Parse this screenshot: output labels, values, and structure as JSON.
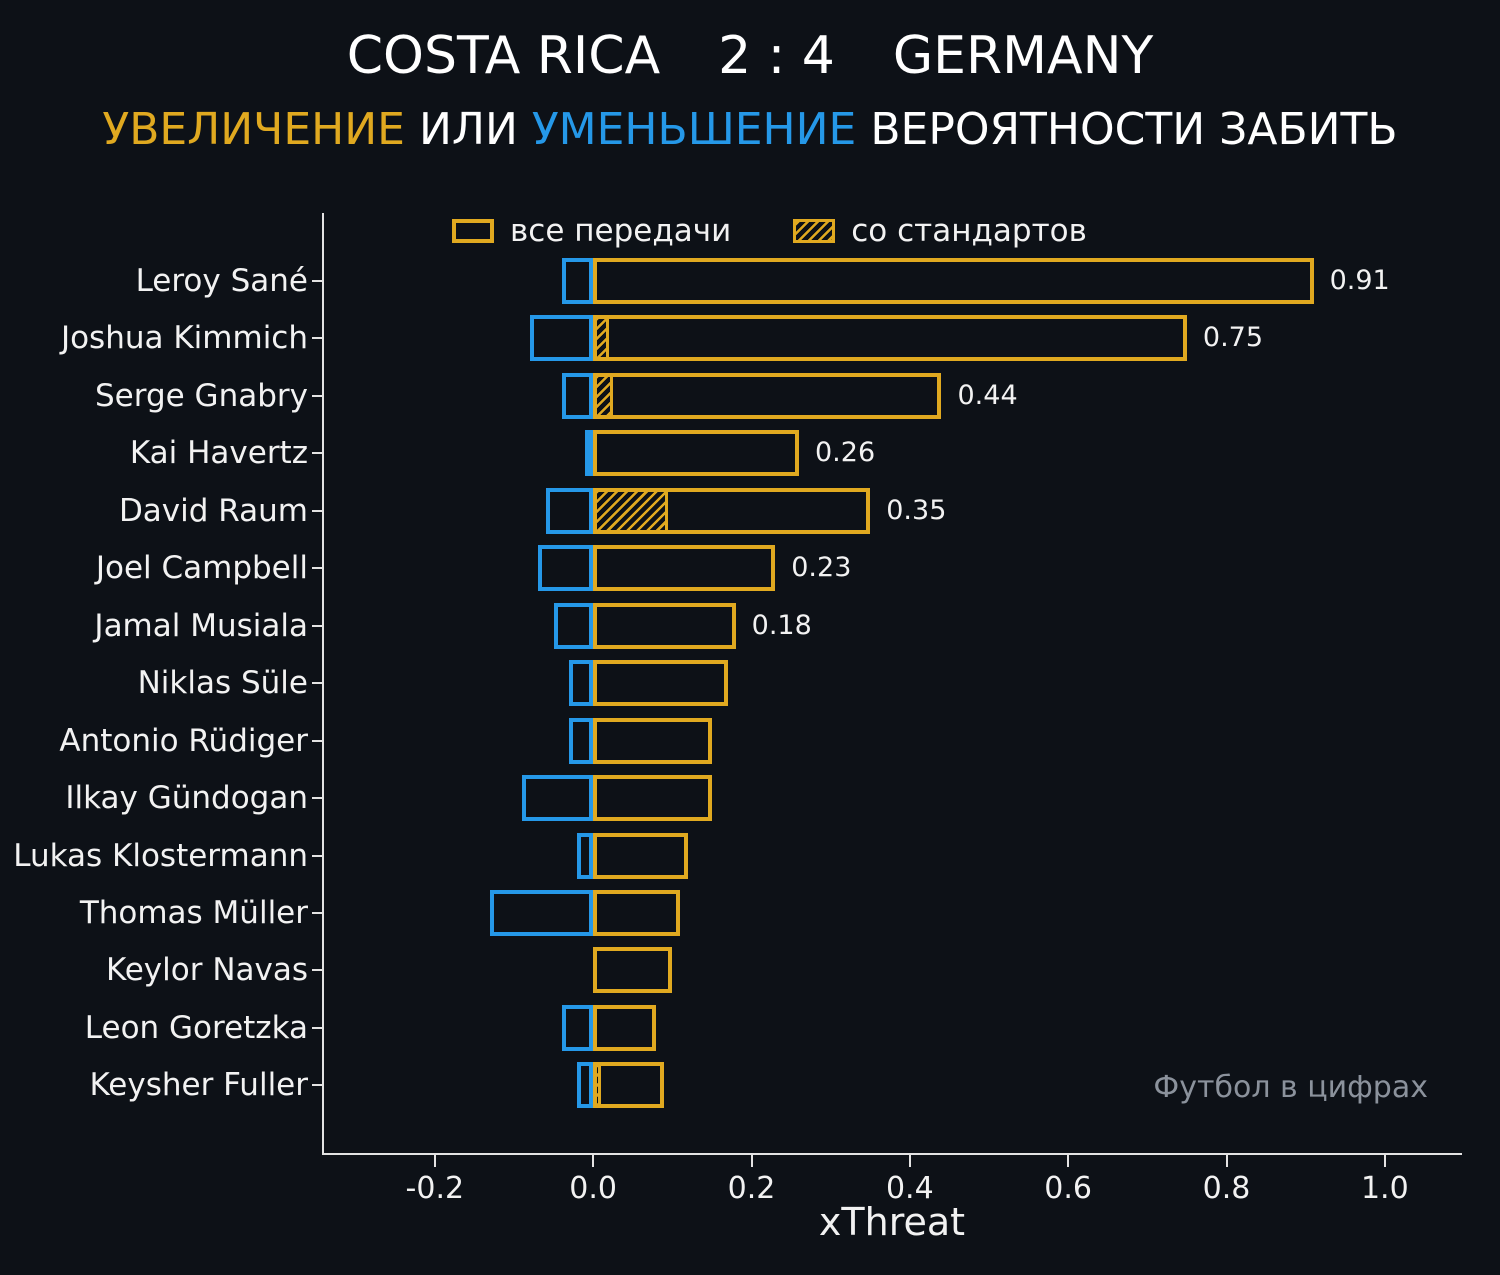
{
  "header": {
    "home": "COSTA RICA",
    "score": "2 : 4",
    "away": "GERMANY",
    "subtitle_increase": "УВЕЛИЧЕНИЕ",
    "subtitle_mid": " ИЛИ ",
    "subtitle_decrease": "УМЕНЬШЕНИЕ",
    "subtitle_rest": " ВЕРОЯТНОСТИ ЗАБИТЬ"
  },
  "legend": {
    "all_passes": "все передачи",
    "set_pieces": "со стандартов"
  },
  "watermark": "Футбол в цифрах",
  "colors": {
    "background": "#0d1117",
    "increase": "#e0a920",
    "decrease": "#2598e8"
  },
  "chart_data": {
    "type": "bar",
    "orientation": "horizontal",
    "title": "COSTA RICA 2 : 4 GERMANY",
    "subtitle": "УВЕЛИЧЕНИЕ ИЛИ УМЕНЬШЕНИЕ ВЕРОЯТНОСТИ ЗАБИТЬ",
    "xlabel": "xThreat",
    "xlim": [
      -0.34,
      1.1
    ],
    "x_ticks": [
      -0.2,
      0.0,
      0.2,
      0.4,
      0.6,
      0.8,
      1.0
    ],
    "x_tick_labels": [
      "-0.2",
      "0.0",
      "0.2",
      "0.4",
      "0.6",
      "0.8",
      "1.0"
    ],
    "legend_position": "top",
    "grid": false,
    "players": [
      {
        "name": "Leroy Sané",
        "total": 0.91,
        "set_pieces": 0,
        "negative": -0.04,
        "label": "0.91"
      },
      {
        "name": "Joshua Kimmich",
        "total": 0.75,
        "set_pieces": 0.02,
        "negative": -0.08,
        "label": "0.75"
      },
      {
        "name": "Serge Gnabry",
        "total": 0.44,
        "set_pieces": 0.025,
        "negative": -0.04,
        "label": "0.44"
      },
      {
        "name": "Kai Havertz",
        "total": 0.26,
        "set_pieces": 0,
        "negative": -0.01,
        "label": "0.26"
      },
      {
        "name": "David Raum",
        "total": 0.35,
        "set_pieces": 0.095,
        "negative": -0.06,
        "label": "0.35"
      },
      {
        "name": "Joel Campbell",
        "total": 0.23,
        "set_pieces": 0,
        "negative": -0.07,
        "label": "0.23"
      },
      {
        "name": "Jamal Musiala",
        "total": 0.18,
        "set_pieces": 0,
        "negative": -0.05,
        "label": "0.18"
      },
      {
        "name": "Niklas Süle",
        "total": 0.17,
        "set_pieces": 0,
        "negative": -0.03,
        "label": null
      },
      {
        "name": "Antonio Rüdiger",
        "total": 0.15,
        "set_pieces": 0,
        "negative": -0.03,
        "label": null
      },
      {
        "name": "Ilkay Gündogan",
        "total": 0.15,
        "set_pieces": 0,
        "negative": -0.09,
        "label": null
      },
      {
        "name": "Lukas Klostermann",
        "total": 0.12,
        "set_pieces": 0,
        "negative": -0.02,
        "label": null
      },
      {
        "name": "Thomas Müller",
        "total": 0.11,
        "set_pieces": 0,
        "negative": -0.13,
        "label": null
      },
      {
        "name": "Keylor Navas",
        "total": 0.1,
        "set_pieces": 0,
        "negative": 0,
        "label": null
      },
      {
        "name": "Leon Goretzka",
        "total": 0.08,
        "set_pieces": 0,
        "negative": -0.04,
        "label": null
      },
      {
        "name": "Keysher Fuller",
        "total": 0.09,
        "set_pieces": 0.01,
        "negative": -0.02,
        "label": null
      }
    ]
  }
}
